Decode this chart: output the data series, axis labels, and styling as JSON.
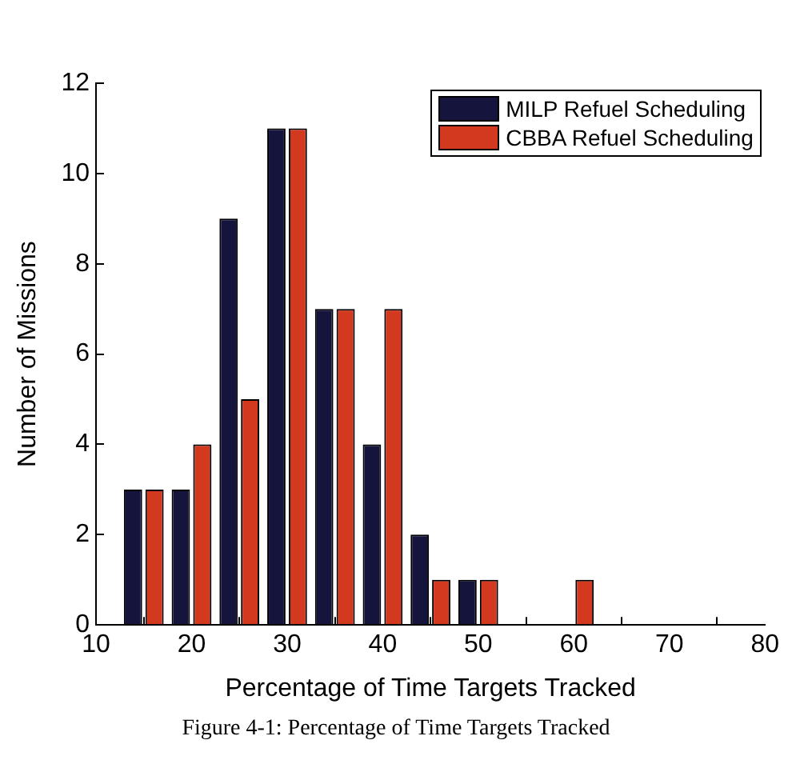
{
  "chart_data": {
    "type": "bar",
    "xlabel": "Percentage of Time Targets Tracked",
    "ylabel": "Number of Missions",
    "x": [
      15,
      20,
      25,
      30,
      35,
      40,
      45,
      50,
      55,
      60
    ],
    "series": [
      {
        "name": "MILP Refuel Scheduling",
        "color": "#14143c",
        "values": [
          3,
          3,
          9,
          11,
          7,
          4,
          2,
          1,
          0,
          0
        ]
      },
      {
        "name": "CBBA Refuel Scheduling",
        "color": "#d2391e",
        "values": [
          3,
          4,
          5,
          11,
          7,
          7,
          1,
          1,
          0,
          1
        ]
      }
    ],
    "xlim": [
      10,
      80
    ],
    "xticks": [
      10,
      20,
      30,
      40,
      50,
      60,
      70,
      80
    ],
    "ylim": [
      0,
      12
    ],
    "yticks": [
      0,
      2,
      4,
      6,
      8,
      10,
      12
    ],
    "legend": "top right",
    "grid": false,
    "annotations": [
      "Figure 4-1: Percentage of Time Targets Tracked"
    ]
  }
}
